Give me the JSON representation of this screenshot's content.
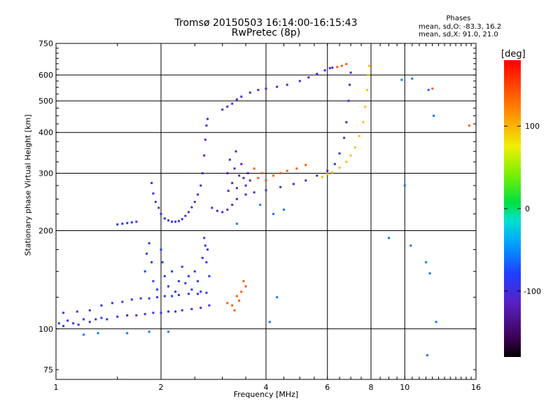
{
  "chart_data": {
    "type": "scatter",
    "title": "Tromsø 20150503 16:14:00-16:15:43",
    "subtitle": "RwPretec (8p)",
    "xlabel": "Frequency [MHz]",
    "ylabel": "Stationary phase Virtual Height [km]",
    "x_scale": "log",
    "y_scale": "log",
    "xlim": [
      1,
      16
    ],
    "ylim": [
      70,
      750
    ],
    "x_ticks": [
      1,
      2,
      4,
      6,
      8,
      10,
      16
    ],
    "x_tick_labels": [
      "1",
      "2",
      "4",
      "6",
      "8",
      "10",
      "16"
    ],
    "y_ticks": [
      75,
      100,
      200,
      300,
      400,
      500,
      600,
      750
    ],
    "y_tick_labels": [
      "75",
      "100",
      "200",
      "300",
      "400",
      "500",
      "600",
      "750"
    ],
    "grid": true,
    "phases_header": "Phases",
    "phases_o_text": "mean, sd,O: -83.3, 16.2",
    "phases_x_text": "mean, sd,X: 91.0, 21.0",
    "colorbar": {
      "unit_label": "[deg]",
      "range": [
        -180,
        180
      ],
      "tick_values": [
        100,
        0,
        -100
      ],
      "tick_labels": [
        "100",
        "0",
        "-100"
      ]
    },
    "colors": {
      "o_mode": "#1a3fe0",
      "x_mode": "#f0d000",
      "low_e": "#2070e0",
      "spread": "#1e90e0",
      "scatter_orange": "#f08a20"
    },
    "traces": [
      {
        "name": "Es low trace",
        "phase": -95,
        "points": [
          [
            1.02,
            104
          ],
          [
            1.05,
            102
          ],
          [
            1.08,
            106
          ],
          [
            1.12,
            104
          ],
          [
            1.16,
            103
          ],
          [
            1.2,
            107
          ],
          [
            1.25,
            105
          ],
          [
            1.3,
            107
          ],
          [
            1.35,
            108
          ],
          [
            1.4,
            107
          ],
          [
            1.5,
            109
          ],
          [
            1.6,
            110
          ],
          [
            1.7,
            110
          ],
          [
            1.8,
            111
          ],
          [
            1.9,
            112
          ],
          [
            2.0,
            112
          ],
          [
            2.1,
            113
          ],
          [
            2.2,
            113
          ],
          [
            2.3,
            114
          ],
          [
            2.45,
            115
          ],
          [
            2.6,
            116
          ],
          [
            2.75,
            118
          ]
        ]
      },
      {
        "name": "Es upper trace",
        "phase": -90,
        "points": [
          [
            1.05,
            112
          ],
          [
            1.15,
            113
          ],
          [
            1.25,
            114
          ],
          [
            1.35,
            118
          ],
          [
            1.45,
            120
          ],
          [
            1.55,
            121
          ],
          [
            1.65,
            123
          ],
          [
            1.75,
            124
          ],
          [
            1.85,
            124
          ],
          [
            1.95,
            125
          ],
          [
            2.05,
            126
          ],
          [
            2.15,
            126
          ],
          [
            2.25,
            127
          ],
          [
            2.4,
            128
          ],
          [
            2.55,
            128
          ],
          [
            2.7,
            129
          ]
        ]
      },
      {
        "name": "Es spread",
        "phase": -85,
        "points": [
          [
            1.8,
            150
          ],
          [
            1.82,
            170
          ],
          [
            1.85,
            183
          ],
          [
            1.88,
            160
          ],
          [
            1.9,
            140
          ],
          [
            1.95,
            132
          ],
          [
            2.0,
            175
          ],
          [
            2.02,
            160
          ],
          [
            2.05,
            145
          ],
          [
            2.1,
            135
          ],
          [
            2.15,
            150
          ],
          [
            2.2,
            130
          ],
          [
            2.25,
            140
          ],
          [
            2.3,
            155
          ],
          [
            2.35,
            138
          ],
          [
            2.4,
            145
          ],
          [
            2.45,
            132
          ],
          [
            2.5,
            150
          ],
          [
            2.55,
            140
          ],
          [
            2.6,
            130
          ],
          [
            2.63,
            165
          ],
          [
            2.66,
            190
          ],
          [
            2.68,
            180
          ],
          [
            2.7,
            160
          ],
          [
            2.72,
            175
          ],
          [
            2.75,
            145
          ]
        ]
      },
      {
        "name": "F1 low trace",
        "phase": -90,
        "points": [
          [
            1.5,
            209
          ],
          [
            1.55,
            210
          ],
          [
            1.6,
            211
          ],
          [
            1.65,
            212
          ],
          [
            1.7,
            213
          ]
        ]
      },
      {
        "name": "F1 cusp and trace",
        "phase": -95,
        "points": [
          [
            1.88,
            280
          ],
          [
            1.9,
            260
          ],
          [
            1.93,
            245
          ],
          [
            1.97,
            235
          ],
          [
            2.0,
            225
          ],
          [
            2.05,
            218
          ],
          [
            2.1,
            215
          ],
          [
            2.15,
            213
          ],
          [
            2.2,
            213
          ],
          [
            2.25,
            214
          ],
          [
            2.3,
            217
          ],
          [
            2.35,
            222
          ],
          [
            2.4,
            228
          ],
          [
            2.45,
            236
          ],
          [
            2.5,
            245
          ],
          [
            2.55,
            258
          ],
          [
            2.6,
            275
          ],
          [
            2.63,
            300
          ],
          [
            2.66,
            340
          ],
          [
            2.68,
            380
          ],
          [
            2.7,
            420
          ],
          [
            2.72,
            440
          ]
        ]
      },
      {
        "name": "F2 O-mode",
        "phase": -105,
        "points": [
          [
            2.8,
            235
          ],
          [
            2.9,
            230
          ],
          [
            3.0,
            228
          ],
          [
            3.1,
            232
          ],
          [
            3.2,
            240
          ],
          [
            3.3,
            250
          ],
          [
            3.5,
            258
          ],
          [
            3.7,
            262
          ],
          [
            4.0,
            266
          ],
          [
            4.4,
            272
          ],
          [
            4.8,
            278
          ],
          [
            5.2,
            285
          ],
          [
            5.6,
            295
          ],
          [
            6.0,
            305
          ],
          [
            6.3,
            320
          ],
          [
            6.5,
            345
          ],
          [
            6.7,
            385
          ],
          [
            6.8,
            430
          ],
          [
            6.9,
            500
          ],
          [
            6.95,
            560
          ],
          [
            7.0,
            610
          ]
        ]
      },
      {
        "name": "F2 O-mode spread",
        "phase": -110,
        "points": [
          [
            3.1,
            300
          ],
          [
            3.15,
            330
          ],
          [
            3.2,
            280
          ],
          [
            3.25,
            310
          ],
          [
            3.3,
            270
          ],
          [
            3.35,
            295
          ],
          [
            3.4,
            320
          ],
          [
            3.45,
            290
          ],
          [
            3.5,
            275
          ],
          [
            3.55,
            300
          ],
          [
            3.6,
            285
          ],
          [
            3.12,
            265
          ],
          [
            3.28,
            350
          ]
        ]
      },
      {
        "name": "F2 X-mode",
        "phase": 95,
        "points": [
          [
            5.8,
            292
          ],
          [
            6.0,
            298
          ],
          [
            6.2,
            302
          ],
          [
            6.5,
            312
          ],
          [
            6.8,
            325
          ],
          [
            7.0,
            340
          ],
          [
            7.2,
            360
          ],
          [
            7.4,
            390
          ],
          [
            7.6,
            430
          ],
          [
            7.7,
            480
          ],
          [
            7.8,
            540
          ],
          [
            7.85,
            600
          ],
          [
            7.9,
            640
          ]
        ]
      },
      {
        "name": "Upper trace",
        "phase": -100,
        "points": [
          [
            3.0,
            470
          ],
          [
            3.1,
            480
          ],
          [
            3.2,
            490
          ],
          [
            3.3,
            505
          ],
          [
            3.4,
            515
          ],
          [
            3.6,
            530
          ],
          [
            3.8,
            540
          ],
          [
            4.0,
            545
          ],
          [
            4.3,
            552
          ],
          [
            4.6,
            560
          ],
          [
            5.0,
            575
          ],
          [
            5.3,
            590
          ],
          [
            5.6,
            605
          ],
          [
            5.9,
            620
          ],
          [
            6.1,
            630
          ],
          [
            6.2,
            632
          ]
        ]
      },
      {
        "name": "Orange scatter",
        "phase": 140,
        "points": [
          [
            3.7,
            310
          ],
          [
            3.8,
            290
          ],
          [
            3.9,
            300
          ],
          [
            4.0,
            285
          ],
          [
            4.2,
            295
          ],
          [
            4.4,
            300
          ],
          [
            4.6,
            305
          ],
          [
            4.9,
            310
          ],
          [
            5.2,
            318
          ],
          [
            3.1,
            120
          ],
          [
            3.2,
            118
          ],
          [
            3.3,
            126
          ],
          [
            3.4,
            130
          ],
          [
            3.45,
            140
          ],
          [
            3.5,
            135
          ],
          [
            3.25,
            114
          ],
          [
            3.35,
            122
          ],
          [
            6.4,
            635
          ],
          [
            6.6,
            640
          ],
          [
            6.8,
            648
          ],
          [
            12.0,
            545
          ],
          [
            15.3,
            420
          ]
        ]
      },
      {
        "name": "Sparse points",
        "phase": -60,
        "points": [
          [
            9.8,
            580
          ],
          [
            10.5,
            585
          ],
          [
            11.7,
            540
          ],
          [
            12.1,
            450
          ],
          [
            10.4,
            180
          ],
          [
            11.5,
            160
          ],
          [
            11.8,
            148
          ],
          [
            12.3,
            105
          ],
          [
            11.6,
            83
          ],
          [
            10.0,
            275
          ],
          [
            9.0,
            190
          ],
          [
            4.5,
            232
          ],
          [
            4.2,
            225
          ],
          [
            3.3,
            210
          ],
          [
            4.3,
            125
          ],
          [
            4.1,
            105
          ],
          [
            3.85,
            240
          ],
          [
            2.1,
            98
          ],
          [
            1.85,
            98
          ],
          [
            1.6,
            97
          ],
          [
            1.32,
            97
          ],
          [
            1.2,
            96
          ]
        ]
      }
    ]
  }
}
